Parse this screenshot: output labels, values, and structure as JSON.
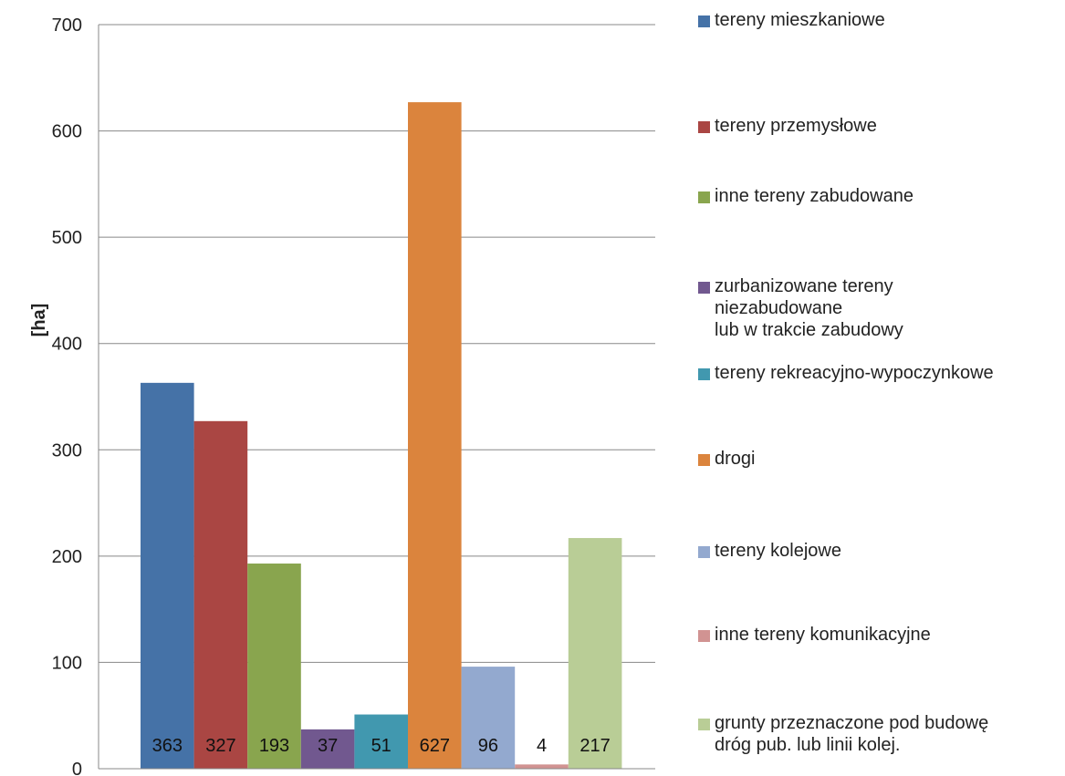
{
  "chart_data": {
    "type": "bar",
    "ylabel": "[ha]",
    "ylim": [
      0,
      700
    ],
    "yticks": [
      0,
      100,
      200,
      300,
      400,
      500,
      600,
      700
    ],
    "grid": true,
    "legend_position": "right",
    "series": [
      {
        "name": "tereny mieszkaniowe",
        "value": 363,
        "color": "#4572A7"
      },
      {
        "name": "tereny przemysłowe",
        "value": 327,
        "color": "#AA4643"
      },
      {
        "name": "inne tereny zabudowane",
        "value": 193,
        "color": "#89A54E"
      },
      {
        "name": "zurbanizowane tereny\nniezabudowane\nlub w trakcie zabudowy",
        "value": 37,
        "color": "#71588F"
      },
      {
        "name": "tereny rekreacyjno-wypoczynkowe",
        "value": 51,
        "color": "#4198AF"
      },
      {
        "name": "drogi",
        "value": 627,
        "color": "#DB843D"
      },
      {
        "name": "tereny kolejowe",
        "value": 96,
        "color": "#93A9CF"
      },
      {
        "name": "inne tereny komunikacyjne",
        "value": 4,
        "color": "#D19392"
      },
      {
        "name": "grunty przeznaczone pod budowę\ndróg pub. lub linii kolej.",
        "value": 217,
        "color": "#B9CD96"
      }
    ]
  }
}
